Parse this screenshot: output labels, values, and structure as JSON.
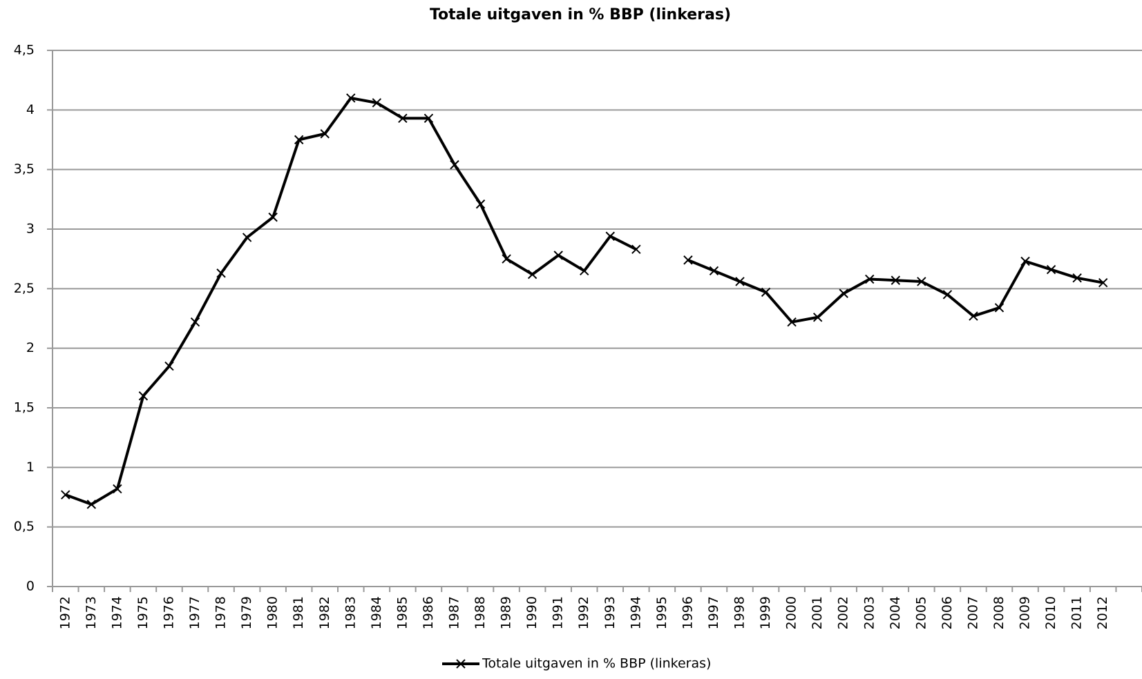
{
  "chart_data": {
    "type": "line",
    "title": "Totale uitgaven in % BBP (linkeras)",
    "categories": [
      "1972",
      "1973",
      "1974",
      "1975",
      "1976",
      "1977",
      "1978",
      "1979",
      "1980",
      "1981",
      "1982",
      "1983",
      "1984",
      "1985",
      "1986",
      "1987",
      "1988",
      "1989",
      "1990",
      "1991",
      "1992",
      "1993",
      "1994",
      "1995",
      "1996",
      "1997",
      "1998",
      "1999",
      "2000",
      "2001",
      "2002",
      "2003",
      "2004",
      "2005",
      "2006",
      "2007",
      "2008",
      "2009",
      "2010",
      "2011",
      "2012",
      null
    ],
    "series": [
      {
        "name": "Totale uitgaven in % BBP (linkeras)",
        "color": "#000000",
        "values": [
          0.77,
          0.69,
          0.82,
          1.6,
          1.85,
          2.22,
          2.63,
          2.93,
          3.1,
          3.75,
          3.8,
          4.1,
          4.06,
          3.93,
          3.93,
          3.54,
          3.21,
          2.75,
          2.62,
          2.78,
          2.65,
          2.94,
          2.83,
          null,
          2.74,
          2.65,
          2.56,
          2.47,
          2.22,
          2.26,
          2.46,
          2.58,
          2.57,
          2.56,
          2.45,
          2.27,
          2.34,
          2.73,
          2.66,
          2.59,
          2.55,
          null
        ]
      }
    ],
    "ylim": [
      0,
      4.5
    ],
    "yticks": [
      0,
      {
        "value": 0.5,
        "label": "0,5"
      },
      1,
      {
        "value": 1.5,
        "label": "1,5"
      },
      2,
      {
        "value": 2.5,
        "label": "2,5"
      },
      3,
      {
        "value": 3.5,
        "label": "3,5"
      },
      4,
      {
        "value": 4.5,
        "label": "4,5"
      }
    ],
    "grid": true,
    "legend": "bottom"
  }
}
